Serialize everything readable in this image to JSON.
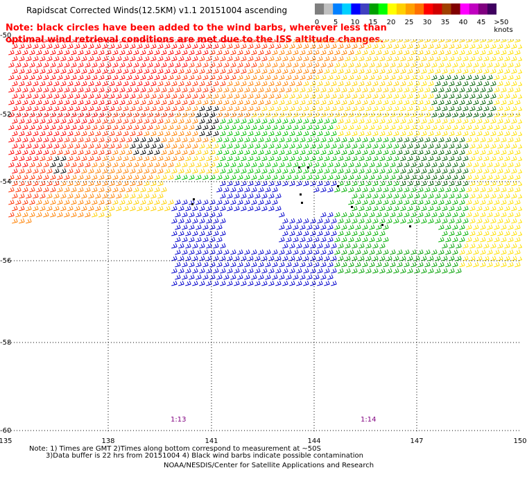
{
  "title": "Rapidscat Corrected Winds(12.5KM) v1.1 20151004 ascending",
  "note": "Note: black circles have been added to the wind barbs, wherever less than optimal wind retrieval conditions are met due to the ISS altitude changes.",
  "colorbar": {
    "segments": [
      {
        "color": "#7f7f7f"
      },
      {
        "color": "#c0c0c0"
      },
      {
        "color": "#0080ff"
      },
      {
        "color": "#00d0ff"
      },
      {
        "color": "#0000ff"
      },
      {
        "color": "#4040c0"
      },
      {
        "color": "#00a000"
      },
      {
        "color": "#00ff00"
      },
      {
        "color": "#ffff00"
      },
      {
        "color": "#ffd000"
      },
      {
        "color": "#ffa000"
      },
      {
        "color": "#ff7000"
      },
      {
        "color": "#ff0000"
      },
      {
        "color": "#d00000"
      },
      {
        "color": "#a04000"
      },
      {
        "color": "#800000"
      },
      {
        "color": "#ff00ff"
      },
      {
        "color": "#c000c0"
      },
      {
        "color": "#800080"
      },
      {
        "color": "#400060"
      }
    ],
    "labels": [
      "0",
      "5",
      "10",
      "15",
      "20",
      "25",
      "30",
      "35",
      "40",
      "45",
      ">50 knots"
    ]
  },
  "axes": {
    "lat_labels": [
      "-50",
      "-52",
      "-54",
      "-56",
      "-58",
      "-60"
    ],
    "lon_labels": [
      "135",
      "138",
      "141",
      "144",
      "147",
      "150"
    ]
  },
  "times": [
    "1:13",
    "1:14"
  ],
  "footer": {
    "line1": "Note: 1) Times are GMT 2)Times along bottom correspond to measurement at ~50S",
    "line2": "3)Data buffer is 22 hrs from 20151004 4) Black wind barbs indicate possible contamination",
    "line3": "NOAA/NESDIS/Center for Satellite Applications and Research"
  }
}
